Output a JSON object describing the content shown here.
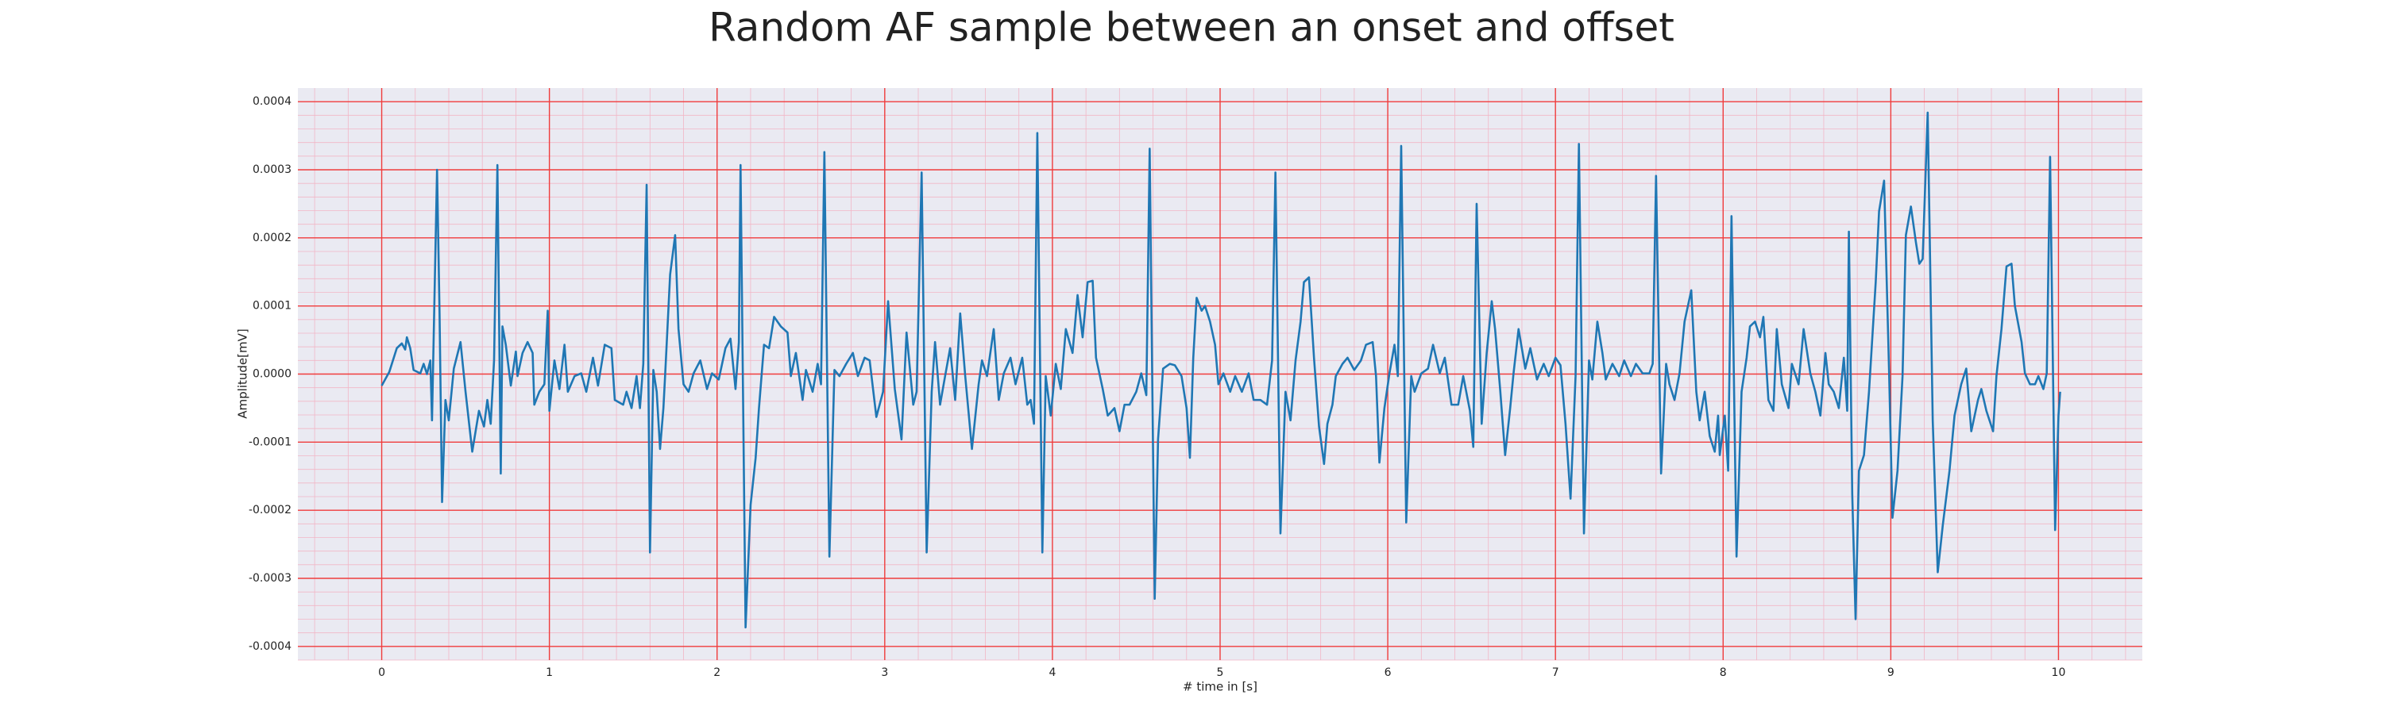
{
  "chart_data": {
    "type": "line",
    "title": "Random AF sample between an onset and offset",
    "xlabel": "# time in [s]",
    "ylabel": "Amplitude[mV]",
    "xlim": [
      -0.5,
      10.5
    ],
    "ylim": [
      -0.00042,
      0.00042
    ],
    "xticks": [
      0,
      1,
      2,
      3,
      4,
      5,
      6,
      7,
      8,
      9,
      10
    ],
    "yticks": [
      -0.0004,
      -0.0003,
      -0.0002,
      -0.0001,
      {
        "value": 0,
        "label": "0.0000"
      },
      0.0001,
      0.0002,
      0.0003,
      0.0004
    ],
    "grid": true,
    "minor_grid": true,
    "background": "#eaeaf2",
    "grid_color": "#f03c3c",
    "minor_grid_color": "#f2b6c6",
    "series": [
      {
        "color": "#1f77b4",
        "x": [
          0,
          0.045,
          0.09,
          0.12,
          0.14,
          0.15,
          0.17,
          0.19,
          0.23,
          0.25,
          0.27,
          0.29,
          0.3,
          0.33,
          0.345,
          0.36,
          0.38,
          0.4,
          0.43,
          0.47,
          0.5,
          0.54,
          0.58,
          0.61,
          0.63,
          0.65,
          0.67,
          0.69,
          0.71,
          0.72,
          0.74,
          0.77,
          0.8,
          0.81,
          0.84,
          0.87,
          0.9,
          0.91,
          0.94,
          0.97,
          0.99,
          1.0,
          1.03,
          1.06,
          1.09,
          1.11,
          1.15,
          1.19,
          1.22,
          1.26,
          1.29,
          1.33,
          1.37,
          1.39,
          1.44,
          1.46,
          1.49,
          1.52,
          1.54,
          1.56,
          1.58,
          1.6,
          1.62,
          1.64,
          1.66,
          1.68,
          1.69,
          1.72,
          1.75,
          1.77,
          1.8,
          1.83,
          1.86,
          1.9,
          1.94,
          1.97,
          2.01,
          2.05,
          2.08,
          2.11,
          2.13,
          2.14,
          2.17,
          2.2,
          2.23,
          2.25,
          2.28,
          2.31,
          2.34,
          2.38,
          2.42,
          2.44,
          2.47,
          2.51,
          2.53,
          2.57,
          2.6,
          2.62,
          2.64,
          2.67,
          2.7,
          2.73,
          2.77,
          2.81,
          2.84,
          2.88,
          2.91,
          2.95,
          2.99,
          3.02,
          3.06,
          3.1,
          3.13,
          3.17,
          3.19,
          3.22,
          3.25,
          3.28,
          3.3,
          3.33,
          3.36,
          3.39,
          3.42,
          3.45,
          3.48,
          3.52,
          3.56,
          3.58,
          3.61,
          3.65,
          3.68,
          3.71,
          3.75,
          3.78,
          3.82,
          3.85,
          3.87,
          3.89,
          3.91,
          3.94,
          3.96,
          3.99,
          4.02,
          4.05,
          4.08,
          4.12,
          4.15,
          4.18,
          4.21,
          4.24,
          4.26,
          4.3,
          4.33,
          4.37,
          4.4,
          4.43,
          4.46,
          4.5,
          4.53,
          4.56,
          4.58,
          4.61,
          4.63,
          4.66,
          4.7,
          4.73,
          4.77,
          4.8,
          4.82,
          4.84,
          4.86,
          4.89,
          4.91,
          4.94,
          4.97,
          4.99,
          5.02,
          5.06,
          5.09,
          5.13,
          5.17,
          5.2,
          5.24,
          5.28,
          5.31,
          5.33,
          5.36,
          5.39,
          5.42,
          5.45,
          5.48,
          5.5,
          5.53,
          5.56,
          5.59,
          5.62,
          5.64,
          5.67,
          5.69,
          5.73,
          5.76,
          5.8,
          5.84,
          5.87,
          5.91,
          5.93,
          5.95,
          5.98,
          6.01,
          6.04,
          6.06,
          6.08,
          6.11,
          6.14,
          6.16,
          6.2,
          6.24,
          6.27,
          6.31,
          6.34,
          6.38,
          6.42,
          6.45,
          6.49,
          6.51,
          6.53,
          6.56,
          6.59,
          6.62,
          6.64,
          6.67,
          6.7,
          6.73,
          6.75,
          6.78,
          6.82,
          6.85,
          6.89,
          6.93,
          6.96,
          7.0,
          7.03,
          7.06,
          7.09,
          7.12,
          7.14,
          7.17,
          7.2,
          7.22,
          7.25,
          7.28,
          7.3,
          7.34,
          7.38,
          7.41,
          7.45,
          7.48,
          7.52,
          7.56,
          7.58,
          7.6,
          7.63,
          7.66,
          7.68,
          7.71,
          7.74,
          7.77,
          7.81,
          7.84,
          7.86,
          7.89,
          7.92,
          7.95,
          7.97,
          7.98,
          8.01,
          8.03,
          8.05,
          8.08,
          8.11,
          8.14,
          8.16,
          8.19,
          8.22,
          8.24,
          8.27,
          8.3,
          8.32,
          8.35,
          8.39,
          8.41,
          8.45,
          8.48,
          8.52,
          8.55,
          8.58,
          8.61,
          8.63,
          8.66,
          8.69,
          8.72,
          8.74,
          8.75,
          8.77,
          8.79,
          8.81,
          8.84,
          8.87,
          8.91,
          8.93,
          8.96,
          8.99,
          9.01,
          9.04,
          9.07,
          9.09,
          9.12,
          9.15,
          9.17,
          9.19,
          9.22,
          9.25,
          9.28,
          9.31,
          9.35,
          9.38,
          9.42,
          9.45,
          9.48,
          9.52,
          9.54,
          9.57,
          9.61,
          9.63,
          9.66,
          9.69,
          9.72,
          9.74,
          9.78,
          9.8,
          9.83,
          9.86,
          9.88,
          9.91,
          9.93,
          9.95,
          9.98,
          10.0,
          10.01
        ],
        "values": [
          -1.7e-05,
          3e-06,
          3.8e-05,
          4.5e-05,
          3.6e-05,
          5.4e-05,
          3.8e-05,
          6e-06,
          1e-06,
          1.5e-05,
          0,
          2e-05,
          -6.8e-05,
          0.0003,
          8.8e-05,
          -0.000188,
          -3.8e-05,
          -6.8e-05,
          8e-06,
          4.7e-05,
          -2.6e-05,
          -0.000114,
          -5.4e-05,
          -7.7e-05,
          -3.8e-05,
          -7.3e-05,
          2e-05,
          0.000307,
          -0.000146,
          7e-05,
          4.3e-05,
          -1.7e-05,
          3.3e-05,
          -3e-06,
          3.1e-05,
          4.7e-05,
          3.1e-05,
          -4.5e-05,
          -2.6e-05,
          -1.5e-05,
          9.3e-05,
          -5.4e-05,
          2e-05,
          -2.2e-05,
          4.3e-05,
          -2.6e-05,
          -3e-06,
          1e-06,
          -2.6e-05,
          2.4e-05,
          -1.7e-05,
          4.3e-05,
          3.8e-05,
          -3.8e-05,
          -4.5e-05,
          -2.6e-05,
          -5e-05,
          -3e-06,
          -5e-05,
          1.5e-05,
          0.000278,
          -0.000262,
          6e-06,
          -2.6e-05,
          -0.00011,
          -5e-05,
          -3e-06,
          0.000146,
          0.000204,
          6.6e-05,
          -1.5e-05,
          -2.6e-05,
          1e-06,
          2e-05,
          -2.2e-05,
          1e-06,
          -8e-06,
          3.8e-05,
          5.2e-05,
          -2.2e-05,
          4.7e-05,
          0.000307,
          -0.000372,
          -0.000192,
          -0.000123,
          -5e-05,
          4.3e-05,
          3.8e-05,
          8.4e-05,
          7e-05,
          6.1e-05,
          -3e-06,
          3.1e-05,
          -3.8e-05,
          6e-06,
          -2.6e-05,
          1.5e-05,
          -1.5e-05,
          0.000326,
          -0.000268,
          6e-06,
          -3e-06,
          1.5e-05,
          3.1e-05,
          -3e-06,
          2.4e-05,
          2e-05,
          -6.3e-05,
          -2.6e-05,
          0.000107,
          -2.2e-05,
          -9.6e-05,
          6.1e-05,
          -4.5e-05,
          -2.6e-05,
          0.000296,
          -0.000262,
          -2.6e-05,
          4.7e-05,
          -4.5e-05,
          -3e-06,
          3.8e-05,
          -3.8e-05,
          8.9e-05,
          -3e-06,
          -0.00011,
          -1.5e-05,
          2e-05,
          -3e-06,
          6.6e-05,
          -3.8e-05,
          1e-06,
          2.4e-05,
          -1.5e-05,
          2.4e-05,
          -4.5e-05,
          -3.8e-05,
          -7.3e-05,
          0.000354,
          -0.000262,
          -3e-06,
          -6.1e-05,
          1.5e-05,
          -2.2e-05,
          6.6e-05,
          3.1e-05,
          0.000116,
          5.4e-05,
          0.000135,
          0.000137,
          2.4e-05,
          -2.2e-05,
          -6.1e-05,
          -5e-05,
          -8.4e-05,
          -4.5e-05,
          -4.5e-05,
          -2.6e-05,
          1e-06,
          -3.1e-05,
          0.000331,
          -0.00033,
          -9.6e-05,
          8e-06,
          1.5e-05,
          1.3e-05,
          -3e-06,
          -5e-05,
          -0.000123,
          2.4e-05,
          0.000112,
          9.3e-05,
          0.0001,
          7.7e-05,
          4.3e-05,
          -1.5e-05,
          1e-06,
          -2.6e-05,
          -3e-06,
          -2.6e-05,
          1e-06,
          -3.8e-05,
          -3.8e-05,
          -4.5e-05,
          2e-05,
          0.000296,
          -0.000234,
          -2.6e-05,
          -6.8e-05,
          2e-05,
          7.7e-05,
          0.000135,
          0.000142,
          2.4e-05,
          -7.7e-05,
          -0.000132,
          -7.3e-05,
          -4.5e-05,
          -3e-06,
          1.5e-05,
          2.4e-05,
          6e-06,
          2e-05,
          4.3e-05,
          4.7e-05,
          -3e-06,
          -0.00013,
          -5e-05,
          1e-06,
          4.3e-05,
          -3e-06,
          0.000335,
          -0.000218,
          -3e-06,
          -2.6e-05,
          1e-06,
          8e-06,
          4.3e-05,
          1e-06,
          2.4e-05,
          -4.5e-05,
          -4.5e-05,
          -3e-06,
          -5.4e-05,
          -0.000107,
          0.00025,
          -7.3e-05,
          3.1e-05,
          0.000107,
          6.6e-05,
          -2.2e-05,
          -0.000119,
          -5e-05,
          1e-06,
          6.6e-05,
          8e-06,
          3.8e-05,
          -8e-06,
          1.5e-05,
          -3e-06,
          2.4e-05,
          1.3e-05,
          -7.3e-05,
          -0.000183,
          -3e-06,
          0.000338,
          -0.000234,
          2e-05,
          -8e-06,
          7.7e-05,
          3.1e-05,
          -8e-06,
          1.5e-05,
          -3e-06,
          2e-05,
          -3e-06,
          1.5e-05,
          1e-06,
          1e-06,
          1.5e-05,
          0.000291,
          -0.000146,
          1.5e-05,
          -1.5e-05,
          -3.8e-05,
          1e-06,
          7.7e-05,
          0.000123,
          -2.6e-05,
          -6.8e-05,
          -2.6e-05,
          -9.1e-05,
          -0.000114,
          -6.1e-05,
          -0.000119,
          -6.1e-05,
          -0.000142,
          0.000232,
          -0.000268,
          -2.6e-05,
          2.4e-05,
          7e-05,
          7.7e-05,
          5.4e-05,
          8.4e-05,
          -3.8e-05,
          -5.4e-05,
          6.6e-05,
          -1.5e-05,
          -5e-05,
          1.5e-05,
          -1.5e-05,
          6.6e-05,
          1e-06,
          -2.6e-05,
          -6.1e-05,
          3.1e-05,
          -1.5e-05,
          -2.6e-05,
          -5e-05,
          2.4e-05,
          -5.4e-05,
          0.000209,
          -0.000176,
          -0.00036,
          -0.000142,
          -0.000119,
          -2.6e-05,
          0.000135,
          0.000239,
          0.000284,
          1e-06,
          -0.000211,
          -0.000142,
          -3e-06,
          0.000204,
          0.000246,
          0.000193,
          0.000162,
          0.000169,
          0.000384,
          -6.8e-05,
          -0.000291,
          -0.000222,
          -0.000142,
          -6.1e-05,
          -1.5e-05,
          8e-06,
          -8.4e-05,
          -3.8e-05,
          -2.2e-05,
          -5.4e-05,
          -8.4e-05,
          -3e-06,
          6.6e-05,
          0.000158,
          0.000162,
          0.0001,
          4.7e-05,
          1e-06,
          -1.5e-05,
          -1.5e-05,
          -3e-06,
          -2.2e-05,
          1e-06,
          0.000319,
          -0.000229,
          -6.1e-05,
          -2.6e-05
        ]
      }
    ]
  }
}
